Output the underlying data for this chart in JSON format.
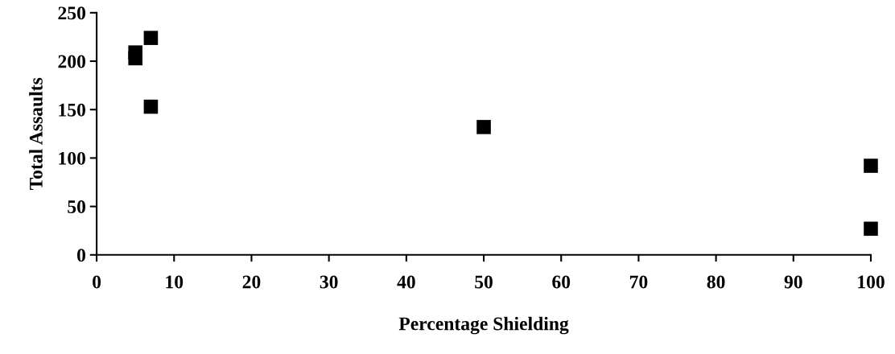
{
  "chart_data": {
    "type": "scatter",
    "xlabel": "Percentage Shielding",
    "ylabel": "Total Assaults",
    "x": [
      5,
      5,
      7,
      7,
      50,
      100,
      100
    ],
    "values": [
      209,
      203,
      224,
      153,
      132,
      92,
      27
    ],
    "color": "#000000",
    "marker": "square",
    "xlim": [
      0,
      100
    ],
    "xticks": [
      0,
      10,
      20,
      30,
      40,
      50,
      60,
      70,
      80,
      90,
      100
    ],
    "ylim": [
      0,
      250
    ],
    "yticks": [
      0,
      50,
      100,
      150,
      200,
      250
    ],
    "grid": false
  }
}
